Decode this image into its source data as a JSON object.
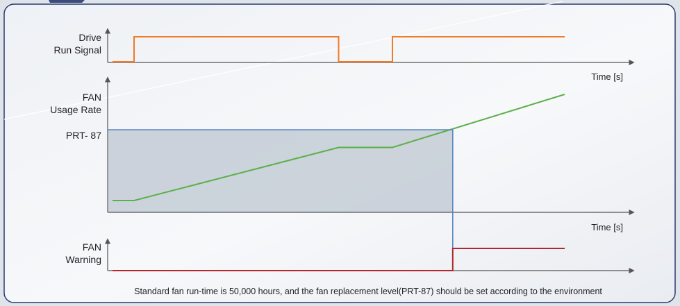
{
  "colors": {
    "run_signal": "#f07a28",
    "usage_rate": "#5bb04a",
    "threshold": "#5a87c2",
    "warning": "#b3282e",
    "axis": "#555555",
    "zone_fill": "#c6ced7",
    "frame": "#2a3a6e"
  },
  "panels": {
    "run": {
      "label_lines": [
        "Drive",
        "Run Signal"
      ],
      "x_label": "Time [s]"
    },
    "usage": {
      "label_lines": [
        "FAN",
        "Usage Rate"
      ],
      "threshold_label": "PRT- 87",
      "x_label": "Time [s]"
    },
    "warning": {
      "label_lines": [
        "FAN",
        "Warning"
      ]
    }
  },
  "chart_data": [
    {
      "type": "line",
      "panel": "run",
      "series": [
        {
          "x": [
            0,
            1,
            1,
            10.5,
            10.5,
            13,
            13,
            21
          ],
          "y": [
            0,
            0,
            1,
            1,
            0,
            0,
            1,
            1
          ]
        }
      ]
    },
    {
      "type": "line",
      "panel": "usage",
      "threshold": 1.0,
      "crossing_time": 15.8,
      "series": [
        {
          "x": [
            0,
            1,
            10.5,
            13,
            21
          ],
          "y": [
            0,
            0,
            0.75,
            0.75,
            1.5
          ]
        }
      ]
    },
    {
      "type": "line",
      "panel": "warning",
      "series": [
        {
          "x": [
            0,
            15.8,
            15.8,
            21
          ],
          "y": [
            0,
            0,
            1,
            1
          ]
        }
      ]
    }
  ],
  "footnote": "Standard fan run-time is 50,000 hours, and the fan replacement level(PRT-87) should be set according to the environment"
}
